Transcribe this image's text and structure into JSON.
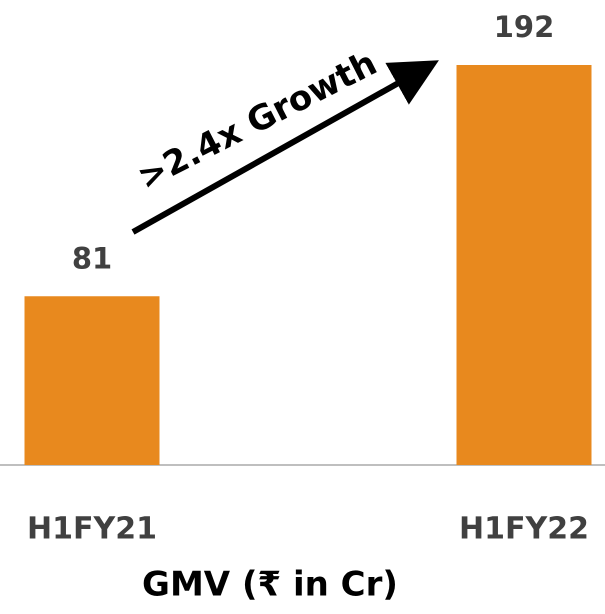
{
  "chart_data": {
    "type": "bar",
    "categories": [
      "H1FY21",
      "H1FY22"
    ],
    "values": [
      81,
      192
    ],
    "color": "#e8891e",
    "x_label": "GMV (₹ in Cr)",
    "annotation": ">2.4x Growth"
  }
}
